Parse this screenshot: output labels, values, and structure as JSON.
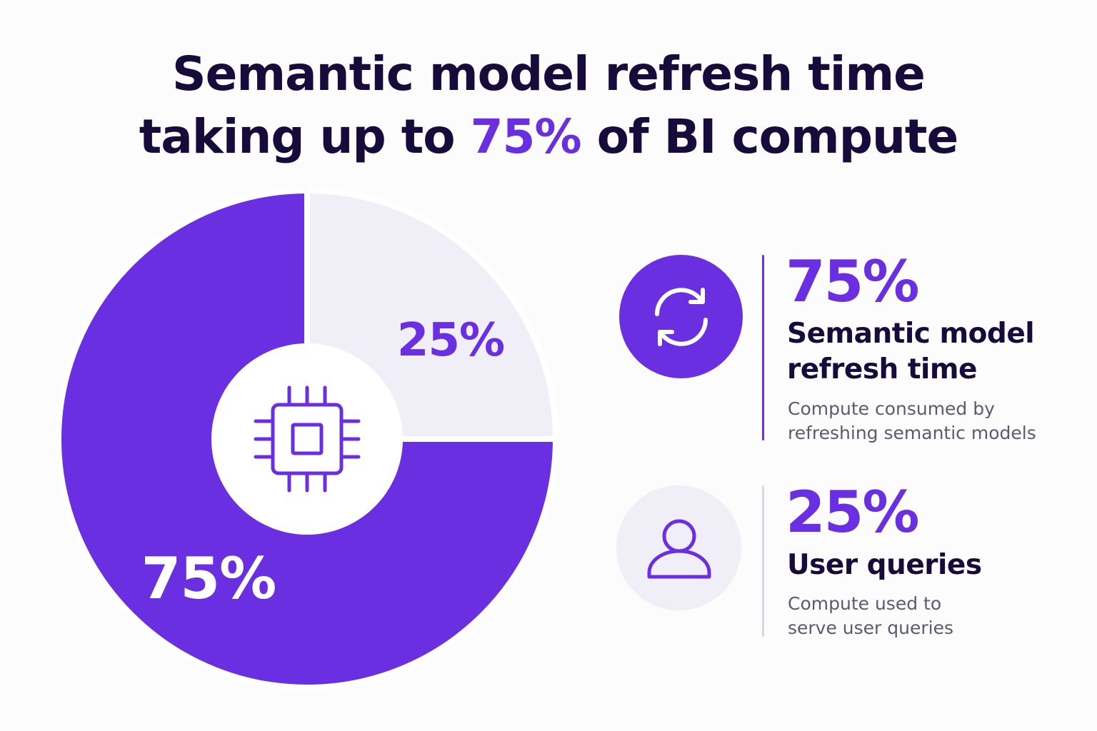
{
  "title": {
    "line1": "Semantic model refresh time",
    "line2_pre": "taking up to ",
    "line2_accent": "75%",
    "line2_post": " of BI compute"
  },
  "colors": {
    "primary": "#6a2fe0",
    "light": "#f0eef6",
    "dark": "#170b3b",
    "muted": "#5c5a70"
  },
  "chart_data": {
    "type": "pie",
    "variant": "donut",
    "center_icon": "cpu-chip-icon",
    "slices": [
      {
        "label": "75%",
        "value": 75,
        "color": "#6a2fe0"
      },
      {
        "label": "25%",
        "value": 25,
        "color": "#f0eef6"
      }
    ]
  },
  "legend": [
    {
      "icon": "refresh-icon",
      "value": "75%",
      "label_line1": "Semantic model",
      "label_line2": "refresh time",
      "desc_line1": "Compute consumed by",
      "desc_line2": "refreshing semantic models"
    },
    {
      "icon": "user-icon",
      "value": "25%",
      "label_line1": "User queries",
      "desc_line1": "Compute used to",
      "desc_line2": "serve user queries"
    }
  ]
}
